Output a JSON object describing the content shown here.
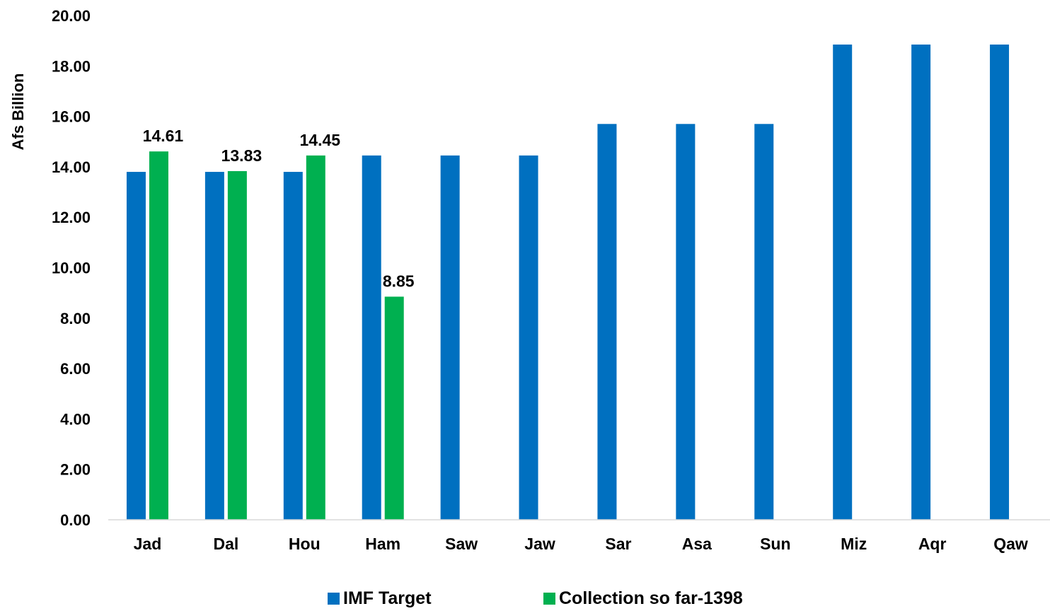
{
  "chart_data": {
    "type": "bar",
    "ylabel": "Afs Billion",
    "xlabel": "",
    "ylim": [
      0,
      20
    ],
    "ytick_step": 2,
    "ytick_labels": [
      "0.00",
      "2.00",
      "4.00",
      "6.00",
      "8.00",
      "10.00",
      "12.00",
      "14.00",
      "16.00",
      "18.00",
      "20.00"
    ],
    "grid": false,
    "legend_position": "bottom",
    "categories": [
      "Jad",
      "Dal",
      "Hou",
      "Ham",
      "Saw",
      "Jaw",
      "Sar",
      "Asa",
      "Sun",
      "Miz",
      "Aqr",
      "Qaw"
    ],
    "series": [
      {
        "name": "IMF Target",
        "color": "#0070C0",
        "values": [
          13.8,
          13.8,
          13.8,
          14.45,
          14.45,
          14.45,
          15.7,
          15.7,
          15.7,
          18.85,
          18.85,
          18.85
        ],
        "data_labels": [
          null,
          null,
          null,
          null,
          null,
          null,
          null,
          null,
          null,
          null,
          null,
          null
        ]
      },
      {
        "name": "Collection so far-1398",
        "color": "#00B050",
        "values": [
          14.61,
          13.83,
          14.45,
          8.85,
          null,
          null,
          null,
          null,
          null,
          null,
          null,
          null
        ],
        "data_labels": [
          "14.61",
          "13.83",
          "14.45",
          "8.85",
          null,
          null,
          null,
          null,
          null,
          null,
          null,
          null
        ]
      }
    ]
  }
}
